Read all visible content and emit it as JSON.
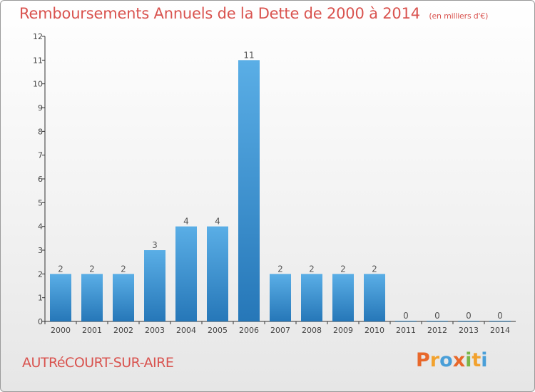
{
  "header": {
    "title": "Remboursements Annuels de la Dette de 2000 à 2014",
    "unit": "(en milliers d'€)"
  },
  "footer": {
    "place": "AUTRéCOURT-SUR-AIRE",
    "logo_letters": [
      "P",
      "r",
      "o",
      "x",
      "i",
      "t",
      "i"
    ],
    "logo_colors": [
      "#e8682b",
      "#f2a22e",
      "#4a9fd8",
      "#e8682b",
      "#7ab648",
      "#f2a22e",
      "#4a9fd8"
    ]
  },
  "colors": {
    "bar_light": "#5aaee6",
    "bar_dark": "#2677b8",
    "title": "#d9534f"
  },
  "chart_data": {
    "type": "bar",
    "categories": [
      "2000",
      "2001",
      "2002",
      "2003",
      "2004",
      "2005",
      "2006",
      "2007",
      "2008",
      "2009",
      "2010",
      "2011",
      "2012",
      "2013",
      "2014"
    ],
    "values": [
      2,
      2,
      2,
      3,
      4,
      4,
      11,
      2,
      2,
      2,
      2,
      0,
      0,
      0,
      0
    ],
    "data_labels": [
      "2",
      "2",
      "2",
      "3",
      "4",
      "4",
      "11",
      "2",
      "2",
      "2",
      "2",
      "0",
      "0",
      "0",
      "0"
    ],
    "yticks": [
      "0",
      "1",
      "2",
      "3",
      "4",
      "5",
      "6",
      "7",
      "8",
      "9",
      "10",
      "11",
      "12"
    ],
    "ylim": [
      0,
      12
    ],
    "grid": false
  }
}
